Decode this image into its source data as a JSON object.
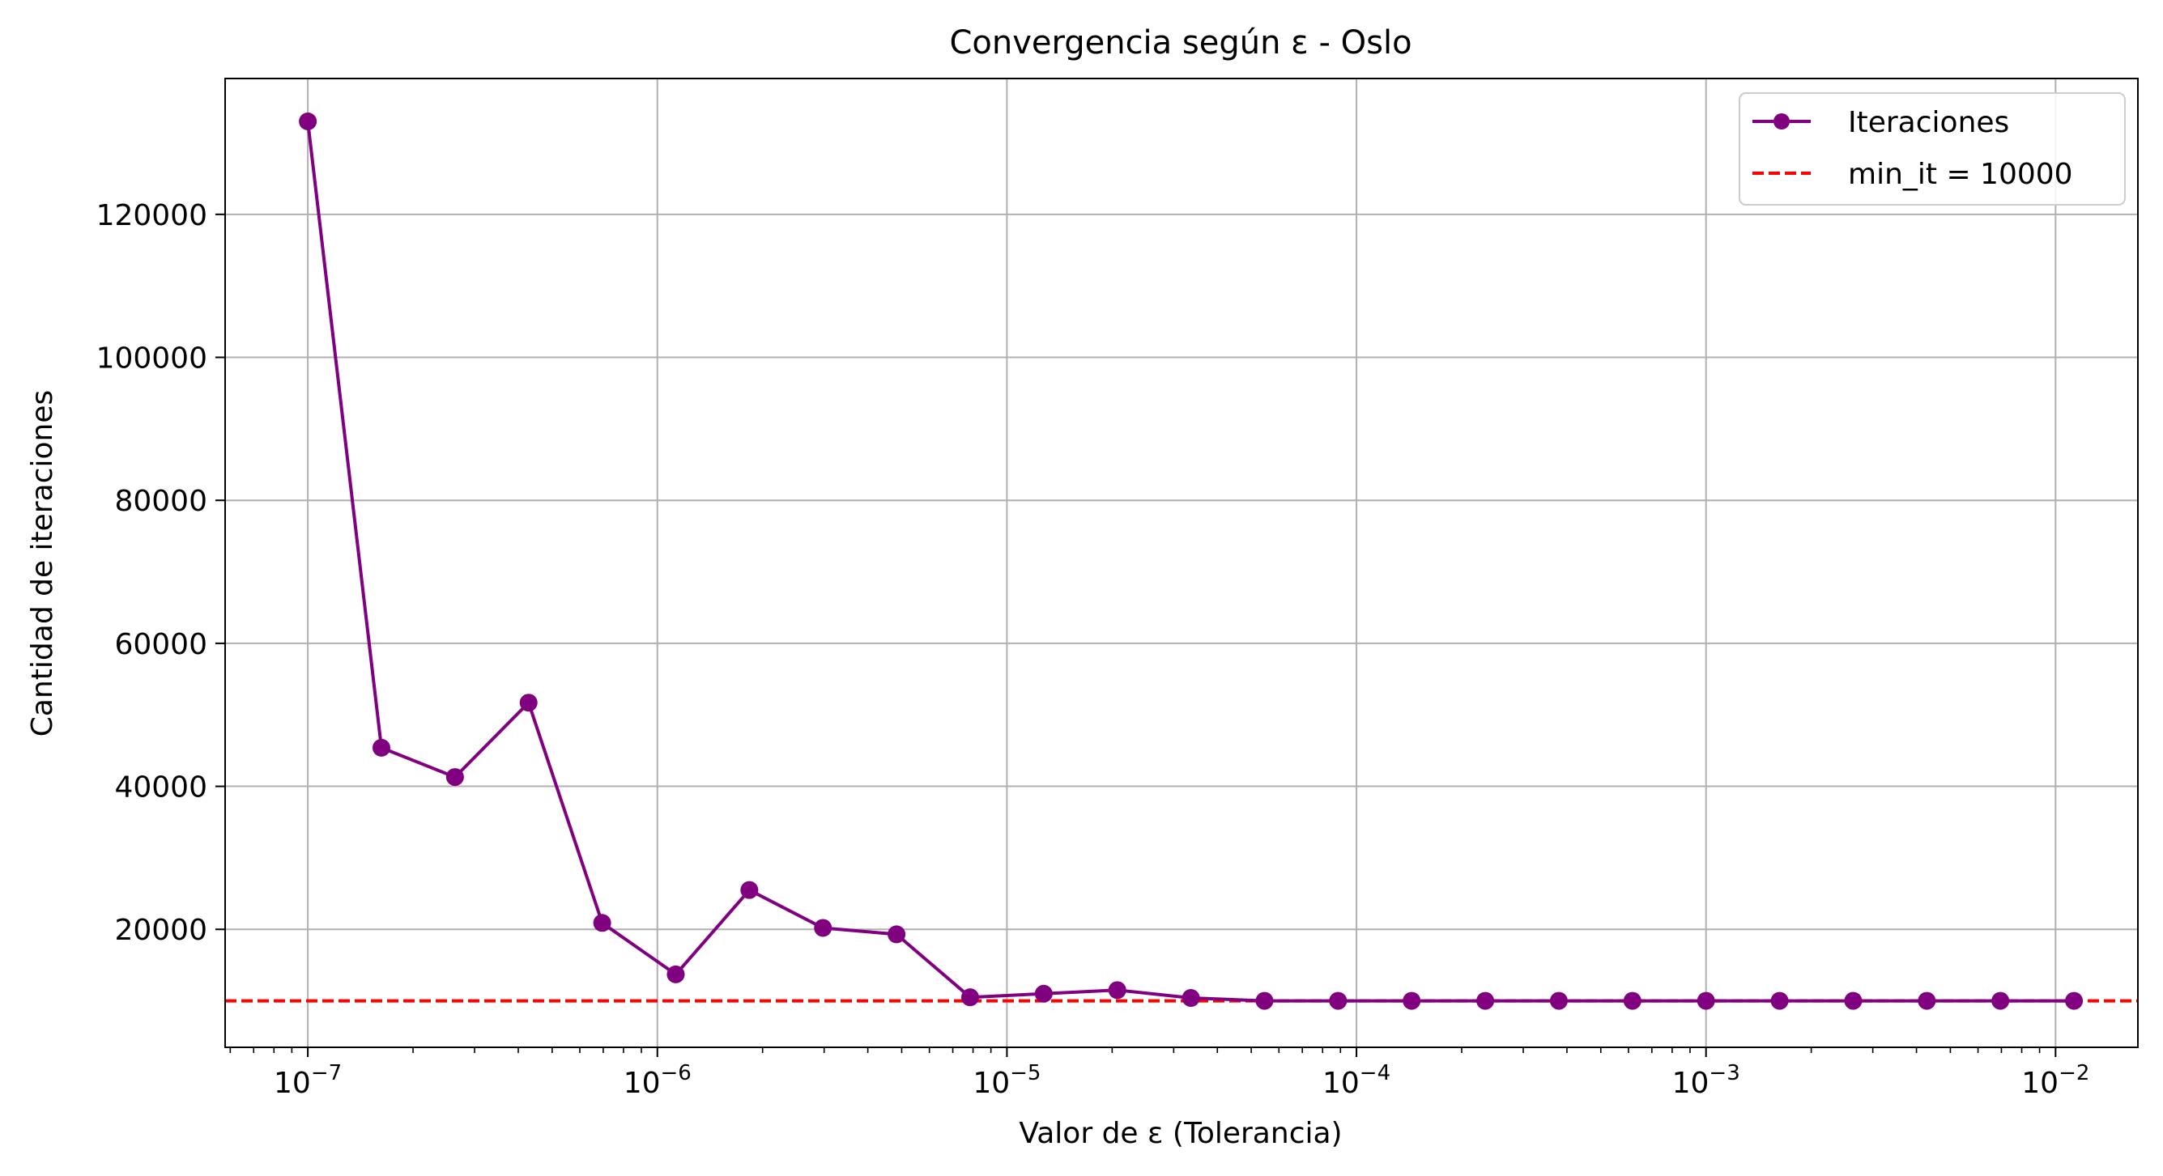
{
  "chart_data": {
    "type": "line",
    "title": "Convergencia según ε - Oslo",
    "xlabel": "Valor de ε (Tolerancia)",
    "ylabel": "Cantidad de iteraciones",
    "x_scale": "log",
    "xlim": [
      5.8e-08,
      0.0172
    ],
    "ylim": [
      3500,
      139000
    ],
    "grid": true,
    "legend_position": "top-right",
    "x_ticks": [
      {
        "value": 1e-07,
        "base": "10",
        "exp": "−7"
      },
      {
        "value": 1e-06,
        "base": "10",
        "exp": "−6"
      },
      {
        "value": 1e-05,
        "base": "10",
        "exp": "−5"
      },
      {
        "value": 0.0001,
        "base": "10",
        "exp": "−4"
      },
      {
        "value": 0.001,
        "base": "10",
        "exp": "−3"
      },
      {
        "value": 0.01,
        "base": "10",
        "exp": "−2"
      }
    ],
    "y_ticks": [
      {
        "value": 20000,
        "label": "20000"
      },
      {
        "value": 40000,
        "label": "40000"
      },
      {
        "value": 60000,
        "label": "60000"
      },
      {
        "value": 80000,
        "label": "80000"
      },
      {
        "value": 100000,
        "label": "100000"
      },
      {
        "value": 120000,
        "label": "120000"
      }
    ],
    "series": [
      {
        "name": "Iteraciones",
        "color": "#800080",
        "marker": "circle",
        "x": [
          1e-07,
          1.6238e-07,
          2.6367e-07,
          4.2813e-07,
          6.9519e-07,
          1.1288e-06,
          1.833e-06,
          2.9764e-06,
          4.8329e-06,
          7.8476e-06,
          1.2743e-05,
          2.0691e-05,
          3.3598e-05,
          5.4556e-05,
          8.8587e-05,
          0.00014384,
          0.00023357,
          0.00037927,
          0.00061585,
          0.001,
          0.0016238,
          0.0026367,
          0.0042813,
          0.0069519,
          0.011288
        ],
        "y": [
          133000,
          45400,
          41300,
          51700,
          20900,
          13700,
          25500,
          20200,
          19300,
          10500,
          11000,
          11500,
          10400,
          10000,
          10000,
          10000,
          10000,
          10000,
          10000,
          10000,
          10000,
          10000,
          10000,
          10000,
          10000
        ]
      },
      {
        "name": "min_it = 10000",
        "color": "#ff0000",
        "style": "dashed",
        "y_constant": 10000
      }
    ]
  }
}
